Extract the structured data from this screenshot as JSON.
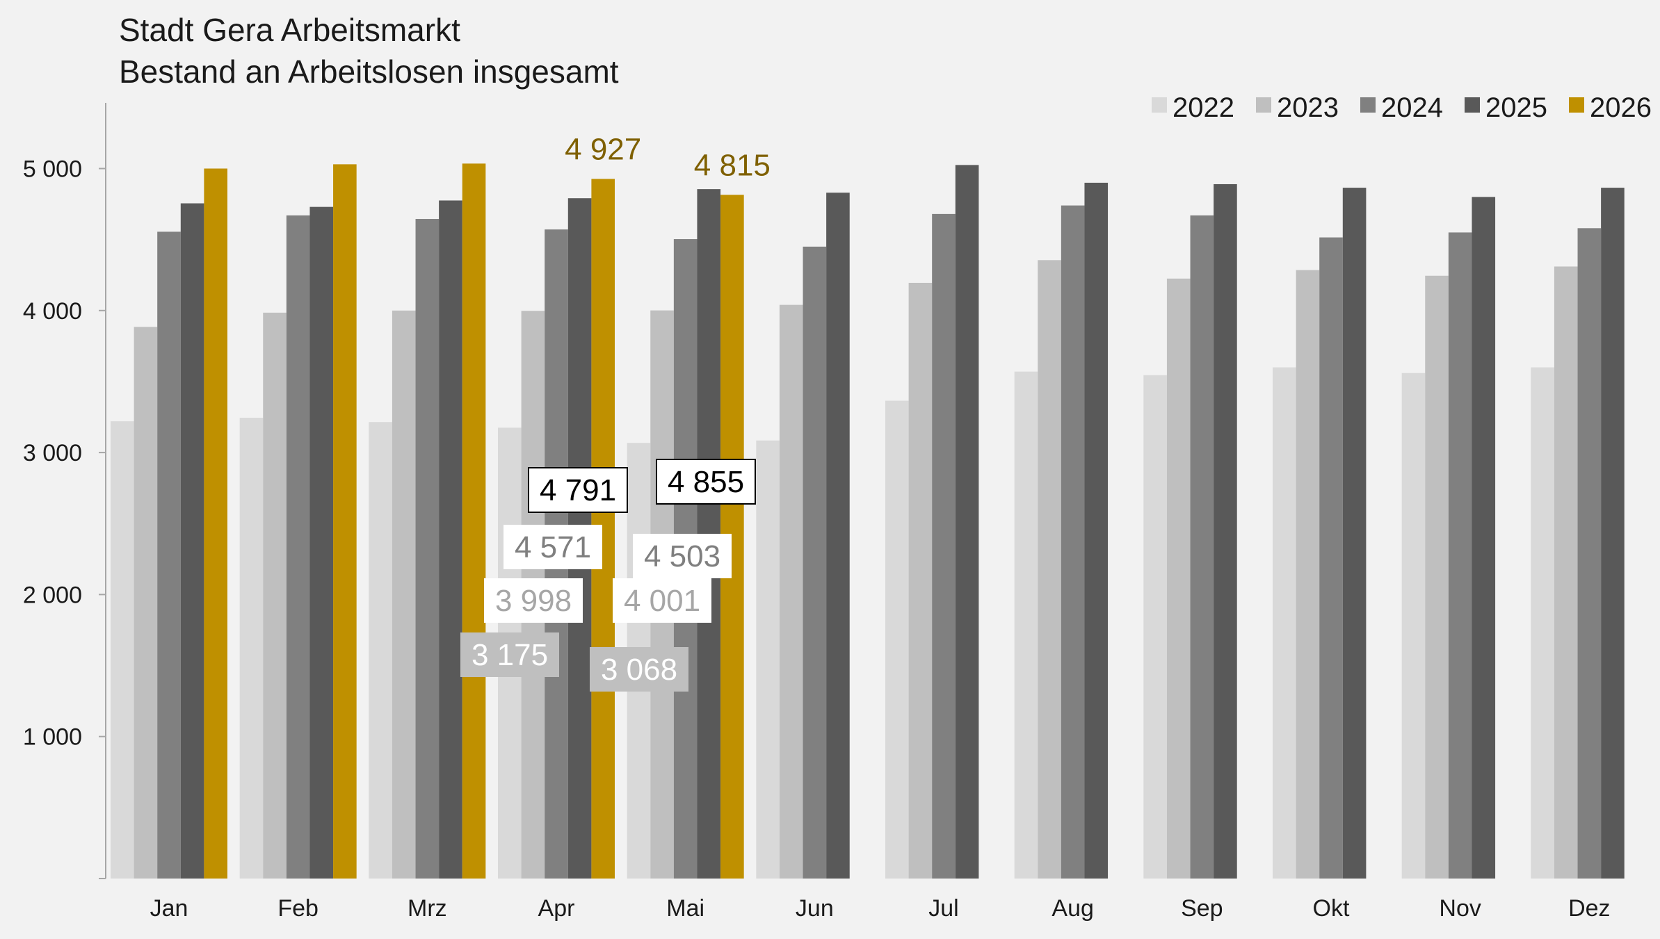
{
  "chart_data": {
    "type": "bar",
    "title": "Stadt Gera Arbeitsmarkt",
    "subtitle": "Bestand an Arbeitslosen insgesamt",
    "categories": [
      "Jan",
      "Feb",
      "Mrz",
      "Apr",
      "Mai",
      "Jun",
      "Jul",
      "Aug",
      "Sep",
      "Okt",
      "Nov",
      "Dez"
    ],
    "series": [
      {
        "name": "2022",
        "color": "#d9d9d9",
        "values": [
          3220,
          3245,
          3215,
          3175,
          3068,
          3085,
          3365,
          3570,
          3545,
          3600,
          3560,
          3600
        ]
      },
      {
        "name": "2023",
        "color": "#bfbfbf",
        "values": [
          3885,
          3985,
          4000,
          3998,
          4001,
          4040,
          4195,
          4355,
          4225,
          4285,
          4245,
          4310
        ]
      },
      {
        "name": "2024",
        "color": "#808080",
        "values": [
          4555,
          4670,
          4645,
          4571,
          4503,
          4450,
          4680,
          4740,
          4670,
          4515,
          4550,
          4580
        ]
      },
      {
        "name": "2025",
        "color": "#595959",
        "values": [
          4755,
          4730,
          4775,
          4791,
          4855,
          4830,
          5025,
          4900,
          4890,
          4865,
          4800,
          4865
        ]
      },
      {
        "name": "2026",
        "color": "#bf9000",
        "values": [
          5000,
          5030,
          5035,
          4927,
          4815,
          null,
          null,
          null,
          null,
          null,
          null,
          null
        ]
      }
    ],
    "ylim": [
      0,
      5500
    ],
    "yticks": [
      1000,
      2000,
      3000,
      4000,
      5000
    ],
    "ytick_labels": [
      "1 000",
      "2 000",
      "3 000",
      "4 000",
      "5 000"
    ],
    "legend_position": "top-right",
    "grid": false,
    "annotations": [
      {
        "category": "Apr",
        "series": "2026",
        "text": "4 927",
        "style": "plain",
        "color": "#7f6000"
      },
      {
        "category": "Mai",
        "series": "2026",
        "text": "4 815",
        "style": "plain",
        "color": "#7f6000"
      },
      {
        "category": "Apr",
        "series": "2025",
        "text": "4 791",
        "style": "box",
        "color": "#000000",
        "fill": "#ffffff"
      },
      {
        "category": "Mai",
        "series": "2025",
        "text": "4 855",
        "style": "box",
        "color": "#000000",
        "fill": "#ffffff"
      },
      {
        "category": "Apr",
        "series": "2024",
        "text": "4 571",
        "style": "box",
        "color": "#7f7f7f",
        "fill": "#ffffff"
      },
      {
        "category": "Mai",
        "series": "2024",
        "text": "4 503",
        "style": "box",
        "color": "#7f7f7f",
        "fill": "#ffffff"
      },
      {
        "category": "Apr",
        "series": "2023",
        "text": "3 998",
        "style": "box",
        "color": "#a6a6a6",
        "fill": "#ffffff"
      },
      {
        "category": "Mai",
        "series": "2023",
        "text": "4 001",
        "style": "box",
        "color": "#a6a6a6",
        "fill": "#ffffff"
      },
      {
        "category": "Apr",
        "series": "2022",
        "text": "3 175",
        "style": "box",
        "color": "#ffffff",
        "fill": "#bfbfbf"
      },
      {
        "category": "Mai",
        "series": "2022",
        "text": "3 068",
        "style": "box",
        "color": "#ffffff",
        "fill": "#bfbfbf"
      }
    ]
  }
}
